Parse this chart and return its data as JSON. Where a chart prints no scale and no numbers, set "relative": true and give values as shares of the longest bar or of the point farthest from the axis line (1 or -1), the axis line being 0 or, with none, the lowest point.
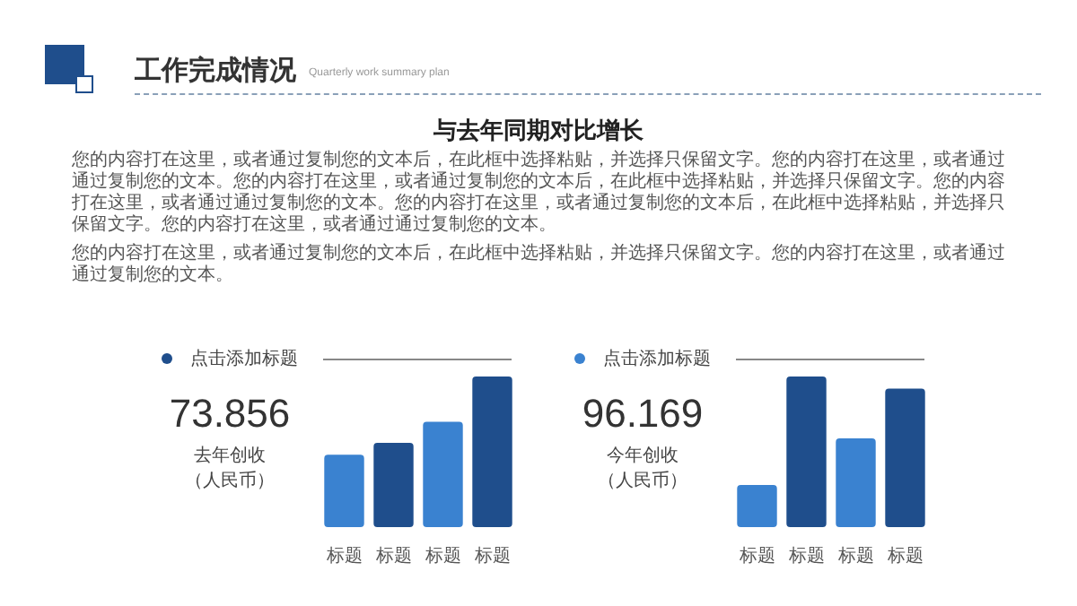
{
  "chart_data": [
    {
      "type": "other",
      "title": "工作完成情况",
      "subtitle": "Quarterly work summary plan",
      "annotations": [
        "与去年同期对比增长",
        "您的内容打在这里，或者通过复制您的文本后，在此框中选择粘贴，并选择只保留文字。您的内容打在这里，或者通过通过复制您的文本。您的内容打在这里，或者通过复制您的文本后，在此框中选择粘贴，并选择只保留文字。您的内容打在这里，或者通过通过复制您的文本。您的内容打在这里，或者通过复制您的文本后，在此框中选择粘贴，并选择只保留文字。您的内容打在这里，或者通过通过复制您的文本。",
        "您的内容打在这里，或者通过复制您的文本后，在此框中选择粘贴，并选择只保留文字。您的内容打在这里，或者通过通过复制您的文本。"
      ]
    },
    {
      "type": "bar",
      "title": "点击添加标题",
      "categories": [
        "标题",
        "标题",
        "标题",
        "标题"
      ],
      "values": [
        0.48,
        0.56,
        0.7,
        1
      ],
      "colors": [
        "#3a82d0",
        "#1f4e8c",
        "#3a82d0",
        "#1f4e8c"
      ],
      "relative": true,
      "annotations": [
        "73.856",
        "去年创收",
        "（人民币）"
      ]
    },
    {
      "type": "bar",
      "title": "点击添加标题",
      "categories": [
        "标题",
        "标题",
        "标题",
        "标题"
      ],
      "values": [
        0.28,
        1,
        0.59,
        0.92
      ],
      "colors": [
        "#3a82d0",
        "#1f4e8c",
        "#3a82d0",
        "#1f4e8c"
      ],
      "relative": true,
      "annotations": [
        "96.169",
        "今年创收",
        "（人民币）"
      ]
    }
  ]
}
